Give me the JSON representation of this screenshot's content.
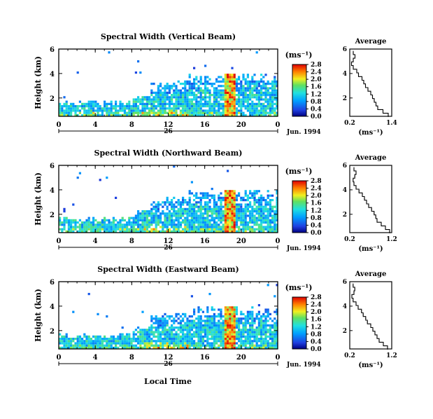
{
  "figure": {
    "x_axis_label": "Local Time",
    "date_label": "Jun. 1994"
  },
  "chart_data": [
    {
      "type": "heatmap",
      "title": "Spectral Width (Vertical Beam)",
      "ylabel": "Height (km)",
      "xlabel": "Local Time",
      "x_ticks": [
        "0",
        "4",
        "8",
        "12",
        "16",
        "20",
        "0"
      ],
      "day_label": "26",
      "date": "Jun. 1994",
      "xlim": [
        0,
        24
      ],
      "ylim": [
        0.5,
        6
      ],
      "y_ticks": [
        "2",
        "4",
        "6"
      ],
      "colorbar": {
        "label": "(ms⁻¹)",
        "ticks": [
          "0.0",
          "0.4",
          "0.8",
          "1.2",
          "1.6",
          "2.0",
          "2.4",
          "2.8"
        ],
        "range": [
          0,
          2.8
        ]
      },
      "average_profile": {
        "title": "Average",
        "xlabel": "(ms⁻¹)",
        "x_ticks": [
          "0.2",
          "1.4"
        ],
        "xlim": [
          0.2,
          1.4
        ],
        "y_ticks": [
          "2",
          "4",
          "6"
        ],
        "ylim": [
          0.5,
          6
        ],
        "height_km": [
          0.6,
          0.9,
          1.2,
          1.5,
          1.8,
          2.1,
          2.4,
          2.7,
          3.0,
          3.3,
          3.6,
          3.9,
          4.2,
          4.5,
          4.8,
          5.1,
          5.4,
          5.7
        ],
        "width_ms": [
          1.3,
          1.15,
          1.0,
          0.95,
          0.9,
          0.85,
          0.8,
          0.72,
          0.65,
          0.6,
          0.55,
          0.45,
          0.4,
          0.3,
          0.25,
          0.3,
          0.35,
          0.3
        ]
      }
    },
    {
      "type": "heatmap",
      "title": "Spectral Width (Northward Beam)",
      "ylabel": "Height (km)",
      "xlabel": "Local Time",
      "x_ticks": [
        "0",
        "4",
        "8",
        "12",
        "16",
        "20",
        "0"
      ],
      "day_label": "26",
      "date": "Jun. 1994",
      "xlim": [
        0,
        24
      ],
      "ylim": [
        0.5,
        6
      ],
      "y_ticks": [
        "2",
        "4",
        "6"
      ],
      "colorbar": {
        "label": "(ms⁻¹)",
        "ticks": [
          "0.0",
          "0.4",
          "0.8",
          "1.2",
          "1.6",
          "2.0",
          "2.4",
          "2.8"
        ],
        "range": [
          0,
          2.8
        ]
      },
      "average_profile": {
        "title": "Average",
        "xlabel": "(ms⁻¹)",
        "x_ticks": [
          "0.2",
          "1.2"
        ],
        "xlim": [
          0.2,
          1.2
        ],
        "y_ticks": [
          "2",
          "4",
          "6"
        ],
        "ylim": [
          0.5,
          6
        ],
        "height_km": [
          0.6,
          0.9,
          1.2,
          1.5,
          1.8,
          2.1,
          2.4,
          2.7,
          3.0,
          3.3,
          3.6,
          3.9,
          4.2,
          4.5,
          4.8,
          5.1,
          5.4,
          5.7
        ],
        "width_ms": [
          1.15,
          1.05,
          0.95,
          0.85,
          0.82,
          0.78,
          0.72,
          0.65,
          0.6,
          0.55,
          0.5,
          0.42,
          0.35,
          0.3,
          0.28,
          0.32,
          0.35,
          0.3
        ]
      }
    },
    {
      "type": "heatmap",
      "title": "Spectral Width (Eastward Beam)",
      "ylabel": "Height (km)",
      "xlabel": "Local Time",
      "x_ticks": [
        "0",
        "4",
        "8",
        "12",
        "16",
        "20",
        "0"
      ],
      "day_label": "26",
      "date": "Jun. 1994",
      "xlim": [
        0,
        24
      ],
      "ylim": [
        0.5,
        6
      ],
      "y_ticks": [
        "2",
        "4",
        "6"
      ],
      "colorbar": {
        "label": "(ms⁻¹)",
        "ticks": [
          "0.0",
          "0.4",
          "0.8",
          "1.2",
          "1.6",
          "2.0",
          "2.4",
          "2.8"
        ],
        "range": [
          0,
          2.8
        ]
      },
      "average_profile": {
        "title": "Average",
        "xlabel": "(ms⁻¹)",
        "x_ticks": [
          "0.2",
          "1.2"
        ],
        "xlim": [
          0.2,
          1.2
        ],
        "y_ticks": [
          "2",
          "4",
          "6"
        ],
        "ylim": [
          0.5,
          6
        ],
        "height_km": [
          0.6,
          0.9,
          1.2,
          1.5,
          1.8,
          2.1,
          2.4,
          2.7,
          3.0,
          3.3,
          3.6,
          3.9,
          4.2,
          4.5,
          4.8,
          5.1,
          5.4,
          5.7
        ],
        "width_ms": [
          1.1,
          1.0,
          0.9,
          0.85,
          0.8,
          0.75,
          0.7,
          0.62,
          0.58,
          0.52,
          0.48,
          0.4,
          0.35,
          0.28,
          0.25,
          0.3,
          0.32,
          0.28
        ]
      }
    }
  ]
}
